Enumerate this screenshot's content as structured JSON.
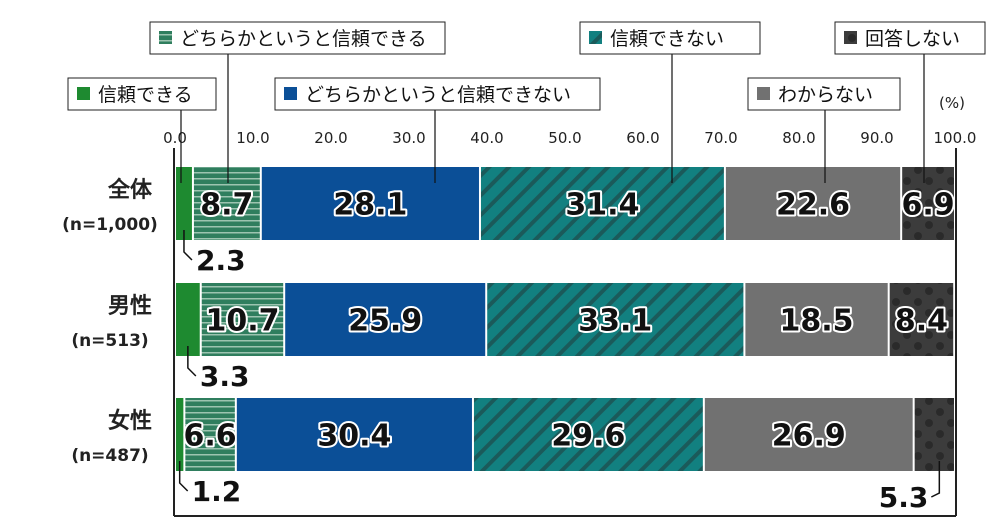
{
  "chart_data": {
    "type": "bar",
    "orientation": "horizontal",
    "stacked": true,
    "unit_label": "(%)",
    "xlim": [
      0,
      100
    ],
    "xticks": [
      "0.0",
      "10.0",
      "20.0",
      "30.0",
      "40.0",
      "50.0",
      "60.0",
      "70.0",
      "80.0",
      "90.0",
      "100.0"
    ],
    "categories": [
      {
        "name": "全体",
        "n": "(n=1,000)"
      },
      {
        "name": "男性",
        "n": "(n=513)"
      },
      {
        "name": "女性",
        "n": "(n=487)"
      }
    ],
    "series": [
      {
        "name": "信頼できる",
        "values": [
          2.3,
          3.3,
          1.2
        ],
        "color": "#1e8a30",
        "pattern": "solid"
      },
      {
        "name": "どちらかというと信頼できる",
        "values": [
          8.7,
          10.7,
          6.6
        ],
        "color": "#2f7e5e",
        "pattern": "horizontal-lines"
      },
      {
        "name": "どちらかというと信頼できない",
        "values": [
          28.1,
          25.9,
          30.4
        ],
        "color": "#0b4f97",
        "pattern": "solid"
      },
      {
        "name": "信頼できない",
        "values": [
          31.4,
          33.1,
          29.6
        ],
        "color": "#128080",
        "pattern": "diagonal-lines"
      },
      {
        "name": "わからない",
        "values": [
          22.6,
          18.5,
          26.9
        ],
        "color": "#717171",
        "pattern": "solid"
      },
      {
        "name": "回答しない",
        "values": [
          6.9,
          8.4,
          5.3
        ],
        "color": "#3c3c3c",
        "pattern": "dots"
      }
    ],
    "legend": "top",
    "grid": false
  }
}
